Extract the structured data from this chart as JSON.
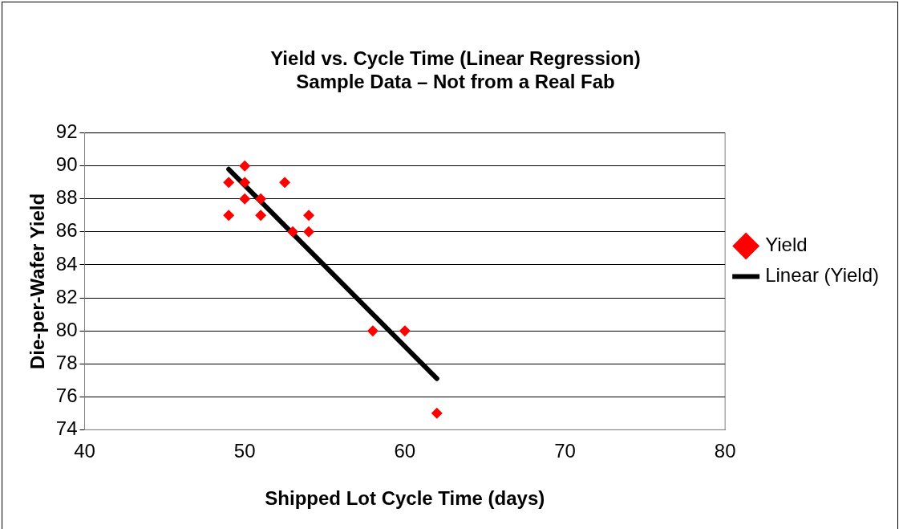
{
  "chart_data": {
    "type": "scatter",
    "title": "Yield vs. Cycle Time (Linear Regression)",
    "subtitle": "Sample Data – Not from a Real Fab",
    "xlabel": "Shipped Lot Cycle Time (days)",
    "ylabel": "Die-per-Wafer Yield",
    "series": [
      {
        "name": "Yield",
        "marker": "diamond",
        "color": "#ff0000",
        "x": [
          49,
          49,
          50,
          50,
          50,
          51,
          51,
          52.5,
          53,
          54,
          54,
          58,
          60,
          62
        ],
        "values": [
          89,
          87,
          90,
          89,
          88,
          88,
          87,
          89,
          86,
          87,
          86,
          80,
          80,
          75
        ]
      },
      {
        "name": "Linear (Yield)",
        "type": "line",
        "marker": "none",
        "color": "#000000",
        "x": [
          49,
          62
        ],
        "values": [
          89.8,
          77.1
        ]
      }
    ],
    "xlim": [
      40,
      80
    ],
    "xticks": [
      40,
      50,
      60,
      70,
      80
    ],
    "ylim": [
      74,
      92
    ],
    "yticks": [
      74,
      76,
      78,
      80,
      82,
      84,
      86,
      88,
      90,
      92
    ],
    "grid": "y",
    "legend": "right"
  }
}
